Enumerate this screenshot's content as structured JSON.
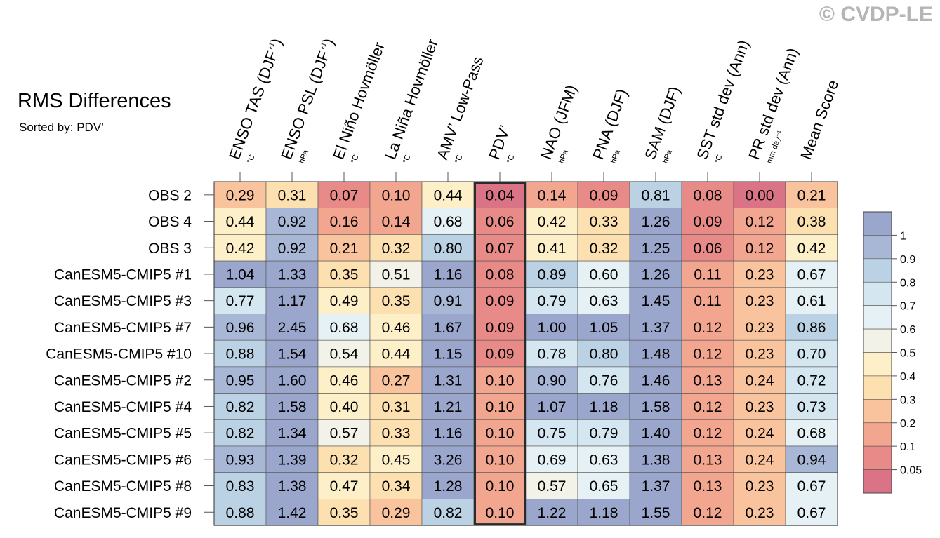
{
  "watermark": "© CVDP-LE",
  "chart_data": {
    "type": "heatmap",
    "title": "RMS Differences",
    "subtitle": "Sorted by: PDV’",
    "highlight_column": 5,
    "columns": [
      {
        "label": "ENSO TAS (DJF",
        "sup": "+1",
        "close": ")",
        "unit": "°C"
      },
      {
        "label": "ENSO PSL (DJF",
        "sup": "+1",
        "close": ")",
        "unit": "hPa"
      },
      {
        "label": "El Niño Hovmöller",
        "sup": "",
        "close": "",
        "unit": "°C"
      },
      {
        "label": "La Niña Hovmöller",
        "sup": "",
        "close": "",
        "unit": "°C"
      },
      {
        "label": "AMV’ Low-Pass",
        "sup": "",
        "close": "",
        "unit": "°C"
      },
      {
        "label": "PDV’",
        "sup": "",
        "close": "",
        "unit": "°C"
      },
      {
        "label": "NAO (JFM)",
        "sup": "",
        "close": "",
        "unit": "hPa"
      },
      {
        "label": "PNA (DJF)",
        "sup": "",
        "close": "",
        "unit": "hPa"
      },
      {
        "label": "SAM (DJF)",
        "sup": "",
        "close": "",
        "unit": "hPa"
      },
      {
        "label": "SST std dev (Ann)",
        "sup": "",
        "close": "",
        "unit": "°C"
      },
      {
        "label": "PR std dev (Ann)",
        "sup": "",
        "close": "",
        "unit": "mm day⁻¹"
      },
      {
        "label": "Mean Score",
        "sup": "",
        "close": "",
        "unit": ""
      }
    ],
    "rows": [
      "OBS 2",
      "OBS 4",
      "OBS 3",
      "CanESM5-CMIP5 #1",
      "CanESM5-CMIP5 #3",
      "CanESM5-CMIP5 #7",
      "CanESM5-CMIP5 #10",
      "CanESM5-CMIP5 #2",
      "CanESM5-CMIP5 #4",
      "CanESM5-CMIP5 #5",
      "CanESM5-CMIP5 #6",
      "CanESM5-CMIP5 #8",
      "CanESM5-CMIP5 #9"
    ],
    "values": [
      [
        0.29,
        0.31,
        0.07,
        0.1,
        0.44,
        0.04,
        0.14,
        0.09,
        0.81,
        0.08,
        0.0,
        0.21
      ],
      [
        0.44,
        0.92,
        0.16,
        0.14,
        0.68,
        0.06,
        0.42,
        0.33,
        1.26,
        0.09,
        0.12,
        0.38
      ],
      [
        0.42,
        0.92,
        0.21,
        0.32,
        0.8,
        0.07,
        0.41,
        0.32,
        1.25,
        0.06,
        0.12,
        0.42
      ],
      [
        1.04,
        1.33,
        0.35,
        0.51,
        1.16,
        0.08,
        0.89,
        0.6,
        1.26,
        0.11,
        0.23,
        0.67
      ],
      [
        0.77,
        1.17,
        0.49,
        0.35,
        0.91,
        0.09,
        0.79,
        0.63,
        1.45,
        0.11,
        0.23,
        0.61
      ],
      [
        0.96,
        2.45,
        0.68,
        0.46,
        1.67,
        0.09,
        1.0,
        1.05,
        1.37,
        0.12,
        0.23,
        0.86
      ],
      [
        0.88,
        1.54,
        0.54,
        0.44,
        1.15,
        0.09,
        0.78,
        0.8,
        1.48,
        0.12,
        0.23,
        0.7
      ],
      [
        0.95,
        1.6,
        0.46,
        0.27,
        1.31,
        0.1,
        0.9,
        0.76,
        1.46,
        0.13,
        0.24,
        0.72
      ],
      [
        0.82,
        1.58,
        0.4,
        0.31,
        1.21,
        0.1,
        1.07,
        1.18,
        1.58,
        0.12,
        0.23,
        0.73
      ],
      [
        0.82,
        1.34,
        0.57,
        0.33,
        1.16,
        0.1,
        0.75,
        0.79,
        1.4,
        0.12,
        0.24,
        0.68
      ],
      [
        0.93,
        1.39,
        0.32,
        0.45,
        3.26,
        0.1,
        0.69,
        0.63,
        1.38,
        0.13,
        0.24,
        0.94
      ],
      [
        0.83,
        1.38,
        0.47,
        0.34,
        1.28,
        0.1,
        0.57,
        0.65,
        1.37,
        0.13,
        0.23,
        0.67
      ],
      [
        0.88,
        1.42,
        0.35,
        0.29,
        0.82,
        0.1,
        1.22,
        1.18,
        1.55,
        0.12,
        0.23,
        0.67
      ]
    ],
    "value_display": [
      [
        "0.29",
        "0.31",
        "0.07",
        "0.10",
        "0.44",
        "0.04",
        "0.14",
        "0.09",
        "0.81",
        "0.08",
        "0.00",
        "0.21"
      ],
      [
        "0.44",
        "0.92",
        "0.16",
        "0.14",
        "0.68",
        "0.06",
        "0.42",
        "0.33",
        "1.26",
        "0.09",
        "0.12",
        "0.38"
      ],
      [
        "0.42",
        "0.92",
        "0.21",
        "0.32",
        "0.80",
        "0.07",
        "0.41",
        "0.32",
        "1.25",
        "0.06",
        "0.12",
        "0.42"
      ],
      [
        "1.04",
        "1.33",
        "0.35",
        "0.51",
        "1.16",
        "0.08",
        "0.89",
        "0.60",
        "1.26",
        "0.11",
        "0.23",
        "0.67"
      ],
      [
        "0.77",
        "1.17",
        "0.49",
        "0.35",
        "0.91",
        "0.09",
        "0.79",
        "0.63",
        "1.45",
        "0.11",
        "0.23",
        "0.61"
      ],
      [
        "0.96",
        "2.45",
        "0.68",
        "0.46",
        "1.67",
        "0.09",
        "1.00",
        "1.05",
        "1.37",
        "0.12",
        "0.23",
        "0.86"
      ],
      [
        "0.88",
        "1.54",
        "0.54",
        "0.44",
        "1.15",
        "0.09",
        "0.78",
        "0.80",
        "1.48",
        "0.12",
        "0.23",
        "0.70"
      ],
      [
        "0.95",
        "1.60",
        "0.46",
        "0.27",
        "1.31",
        "0.10",
        "0.90",
        "0.76",
        "1.46",
        "0.13",
        "0.24",
        "0.72"
      ],
      [
        "0.82",
        "1.58",
        "0.40",
        "0.31",
        "1.21",
        "0.10",
        "1.07",
        "1.18",
        "1.58",
        "0.12",
        "0.23",
        "0.73"
      ],
      [
        "0.82",
        "1.34",
        "0.57",
        "0.33",
        "1.16",
        "0.10",
        "0.75",
        "0.79",
        "1.40",
        "0.12",
        "0.24",
        "0.68"
      ],
      [
        "0.93",
        "1.39",
        "0.32",
        "0.45",
        "3.26",
        "0.10",
        "0.69",
        "0.63",
        "1.38",
        "0.13",
        "0.24",
        "0.94"
      ],
      [
        "0.83",
        "1.38",
        "0.47",
        "0.34",
        "1.28",
        "0.10",
        "0.57",
        "0.65",
        "1.37",
        "0.13",
        "0.23",
        "0.67"
      ],
      [
        "0.88",
        "1.42",
        "0.35",
        "0.29",
        "0.82",
        "0.10",
        "1.22",
        "1.18",
        "1.55",
        "0.12",
        "0.23",
        "0.67"
      ]
    ],
    "colorbar": {
      "ticks": [
        "1",
        "0.9",
        "0.8",
        "0.7",
        "0.6",
        "0.5",
        "0.4",
        "0.3",
        "0.2",
        "0.1",
        "0.05"
      ],
      "colors": [
        "#9aa6cc",
        "#a8b7d6",
        "#bbd2e4",
        "#d4e6ef",
        "#e5f1f4",
        "#f2f2e8",
        "#fdefc7",
        "#fde0b0",
        "#f9c49d",
        "#f2a58f",
        "#e88a87",
        "#d97385"
      ]
    }
  }
}
